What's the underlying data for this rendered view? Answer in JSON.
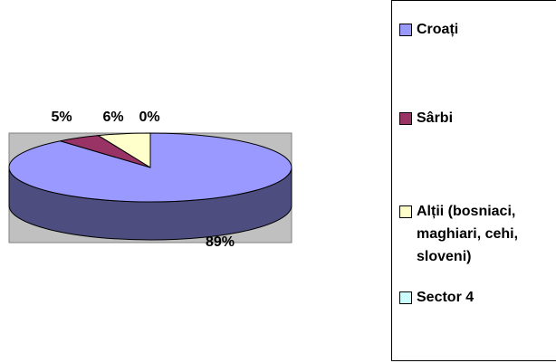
{
  "chart_data": {
    "type": "pie",
    "categories": [
      "Croați",
      "Sârbi",
      "Alții (bosniaci, maghiari, cehi, sloveni)",
      "Sector 4"
    ],
    "values": [
      89,
      5,
      6,
      0
    ],
    "value_labels": [
      "89%",
      "5%",
      "6%",
      "0%"
    ],
    "colors": [
      "#9999ff",
      "#993366",
      "#ffffcc",
      "#ccffff"
    ],
    "legend": "right"
  }
}
